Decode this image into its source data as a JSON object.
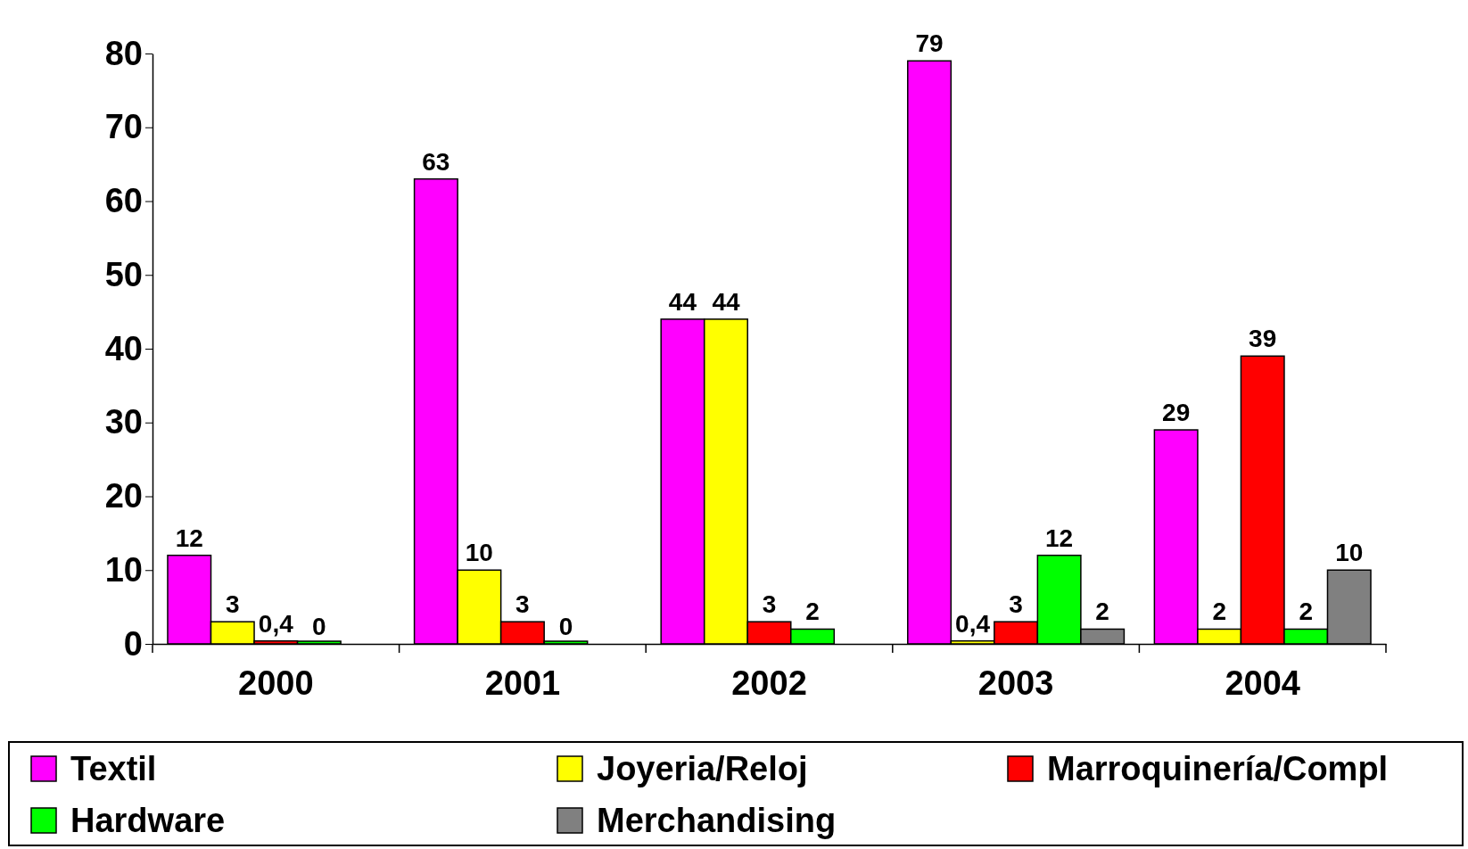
{
  "chart_data": {
    "type": "bar",
    "categories": [
      "2000",
      "2001",
      "2002",
      "2003",
      "2004"
    ],
    "series": [
      {
        "name": "Textil",
        "color": "#ff00ff",
        "values": [
          12,
          63,
          44,
          79,
          29
        ],
        "value_labels": [
          "12",
          "63",
          "44",
          "79",
          "29"
        ]
      },
      {
        "name": "Joyeria/Reloj",
        "color": "#ffff00",
        "values": [
          3,
          10,
          44,
          0.4,
          2
        ],
        "value_labels": [
          "3",
          "10",
          "44",
          "0,4",
          "2"
        ]
      },
      {
        "name": "Marroquinería/Compl",
        "color": "#ff0000",
        "values": [
          0.4,
          3,
          3,
          3,
          39
        ],
        "value_labels": [
          "0,4",
          "3",
          "3",
          "3",
          "39"
        ]
      },
      {
        "name": "Hardware",
        "color": "#00ff00",
        "values": [
          0,
          0,
          2,
          12,
          2
        ],
        "value_labels": [
          "0",
          "0",
          "2",
          "12",
          "2"
        ]
      },
      {
        "name": "Merchandising",
        "color": "#808080",
        "values": [
          null,
          null,
          null,
          2,
          10
        ],
        "value_labels": [
          null,
          null,
          null,
          "2",
          "10"
        ]
      }
    ],
    "ylim": [
      0,
      80
    ],
    "yticks": [
      0,
      10,
      20,
      30,
      40,
      50,
      60,
      70,
      80
    ],
    "grid": false,
    "legend": "bottom"
  }
}
